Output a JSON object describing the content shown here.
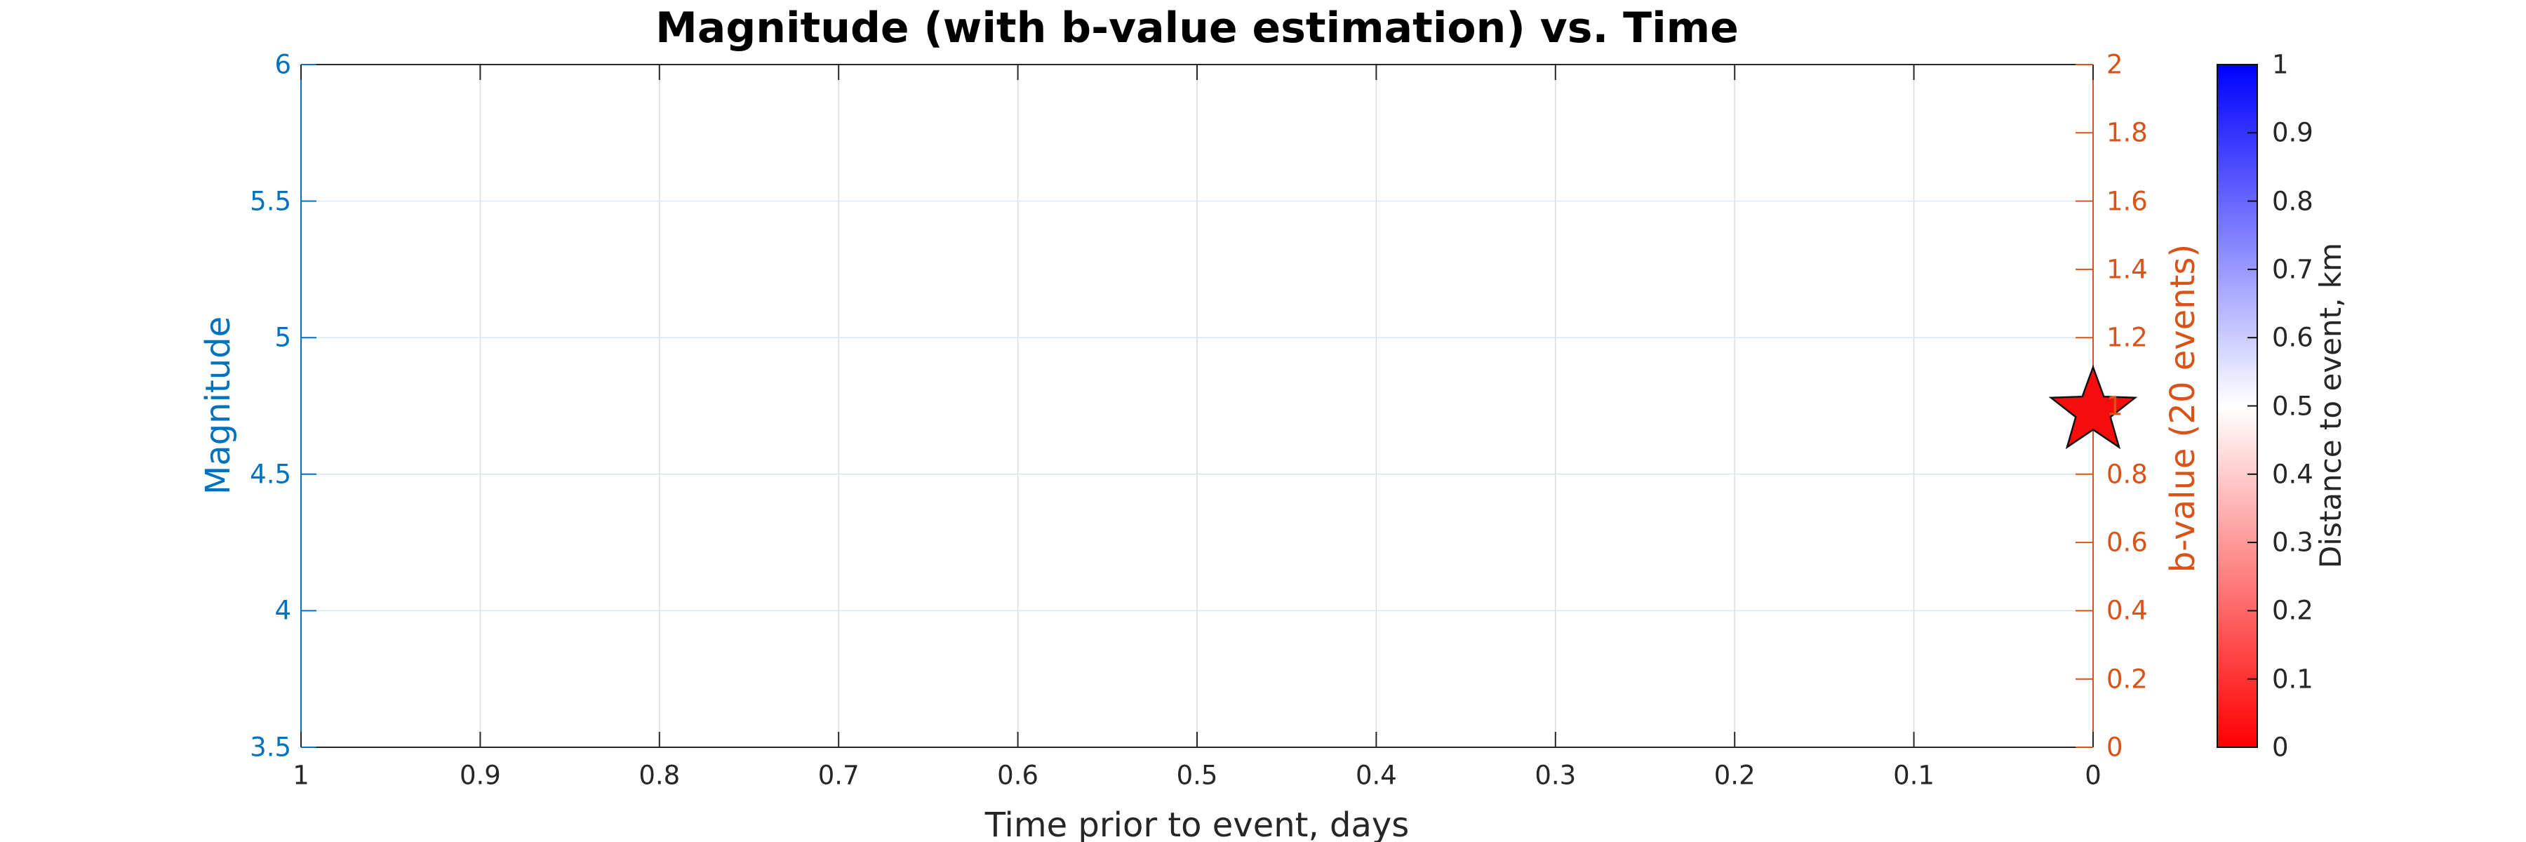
{
  "title": "Magnitude (with b-value estimation) vs. Time",
  "chart_data": {
    "type": "scatter",
    "title": "Magnitude (with b-value estimation) vs. Time",
    "xlabel": "Time prior to event, days",
    "grid": true,
    "background": "#ffffff",
    "x_axis": {
      "range": [
        1,
        0
      ],
      "reversed": true,
      "color": "#262626",
      "tick_labels": [
        "1",
        "0.9",
        "0.8",
        "0.7",
        "0.6",
        "0.5",
        "0.4",
        "0.3",
        "0.2",
        "0.1",
        "0"
      ],
      "tick_values": [
        1,
        0.9,
        0.8,
        0.7,
        0.6,
        0.5,
        0.4,
        0.3,
        0.2,
        0.1,
        0
      ]
    },
    "left_axis": {
      "label": "Magnitude",
      "range": [
        3.5,
        6
      ],
      "color": "#0072BD",
      "tick_labels": [
        "6",
        "5.5",
        "5",
        "4.5",
        "4",
        "3.5"
      ],
      "tick_values": [
        6,
        5.5,
        5,
        4.5,
        4,
        3.5
      ]
    },
    "right_axis": {
      "label": "b-value (20 events)",
      "range": [
        0,
        2
      ],
      "color": "#D95319",
      "tick_labels": [
        "2",
        "1.8",
        "1.6",
        "1.4",
        "1.2",
        "1",
        "0.8",
        "0.6",
        "0.4",
        "0.2",
        "0"
      ],
      "tick_values": [
        2,
        1.8,
        1.6,
        1.4,
        1.2,
        1,
        0.8,
        0.6,
        0.4,
        0.2,
        0
      ]
    },
    "colorbar": {
      "label": "Distance to event, km",
      "range": [
        0,
        1
      ],
      "colormap": "red-white-blue",
      "color_top": "#0000FE",
      "color_middle": "#FFFFFF",
      "color_bottom": "#FE0000",
      "tick_labels": [
        "1",
        "0.9",
        "0.8",
        "0.7",
        "0.6",
        "0.5",
        "0.4",
        "0.3",
        "0.2",
        "0.1",
        "0"
      ],
      "tick_values": [
        1,
        0.9,
        0.8,
        0.7,
        0.6,
        0.5,
        0.4,
        0.3,
        0.2,
        0.1,
        0
      ]
    },
    "series": [
      {
        "name": "mainshock-star",
        "marker": "pentagram",
        "fill": "#F50D0D",
        "edge": "#111111",
        "points": [
          {
            "time": 0,
            "magnitude": 4.73
          }
        ]
      }
    ],
    "grid_color_horizontal": "#D6E6F3",
    "grid_color_vertical": "#DCDCDC"
  }
}
